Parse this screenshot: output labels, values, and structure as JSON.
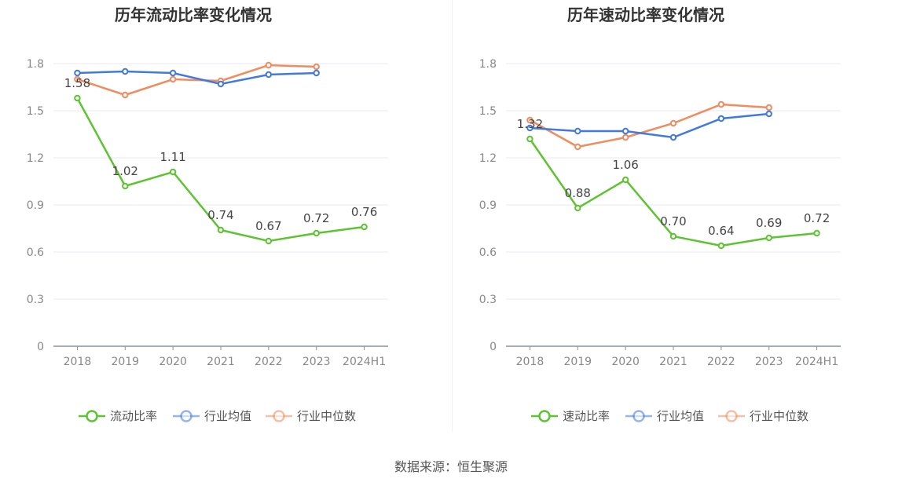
{
  "chart_data": [
    {
      "type": "line",
      "title": "历年流动比率变化情况",
      "categories": [
        "2018",
        "2019",
        "2020",
        "2021",
        "2022",
        "2023",
        "2024H1"
      ],
      "ylim": [
        0,
        1.8
      ],
      "yticks": [
        "0",
        "0.3",
        "0.6",
        "0.9",
        "1.2",
        "1.5",
        "1.8"
      ],
      "grid": true,
      "legend_position": "bottom",
      "series": [
        {
          "name": "流动比率",
          "color": "#5dc431",
          "values": [
            1.58,
            1.02,
            1.11,
            0.74,
            0.67,
            0.72,
            0.76
          ],
          "labels": [
            "1.58",
            "1.02",
            "1.11",
            "0.74",
            "0.67",
            "0.72",
            "0.76"
          ]
        },
        {
          "name": "行业均值",
          "color": "#4279e0",
          "values": [
            1.74,
            1.75,
            1.74,
            1.67,
            1.73,
            1.74,
            null
          ]
        },
        {
          "name": "行业中位数",
          "color": "#f28b5e",
          "values": [
            1.7,
            1.6,
            1.7,
            1.69,
            1.79,
            1.78,
            null
          ]
        }
      ]
    },
    {
      "type": "line",
      "title": "历年速动比率变化情况",
      "categories": [
        "2018",
        "2019",
        "2020",
        "2021",
        "2022",
        "2023",
        "2024H1"
      ],
      "ylim": [
        0,
        1.8
      ],
      "yticks": [
        "0",
        "0.3",
        "0.6",
        "0.9",
        "1.2",
        "1.5",
        "1.8"
      ],
      "grid": true,
      "legend_position": "bottom",
      "series": [
        {
          "name": "速动比率",
          "color": "#5dc431",
          "values": [
            1.32,
            0.88,
            1.06,
            0.7,
            0.64,
            0.69,
            0.72
          ],
          "labels": [
            "1.32",
            "0.88",
            "1.06",
            "0.70",
            "0.64",
            "0.69",
            "0.72"
          ]
        },
        {
          "name": "行业均值",
          "color": "#4279e0",
          "values": [
            1.39,
            1.37,
            1.37,
            1.33,
            1.45,
            1.48,
            null
          ]
        },
        {
          "name": "行业中位数",
          "color": "#f28b5e",
          "values": [
            1.44,
            1.27,
            1.33,
            1.42,
            1.54,
            1.52,
            null
          ]
        }
      ]
    }
  ],
  "source_text": "数据来源：恒生聚源"
}
